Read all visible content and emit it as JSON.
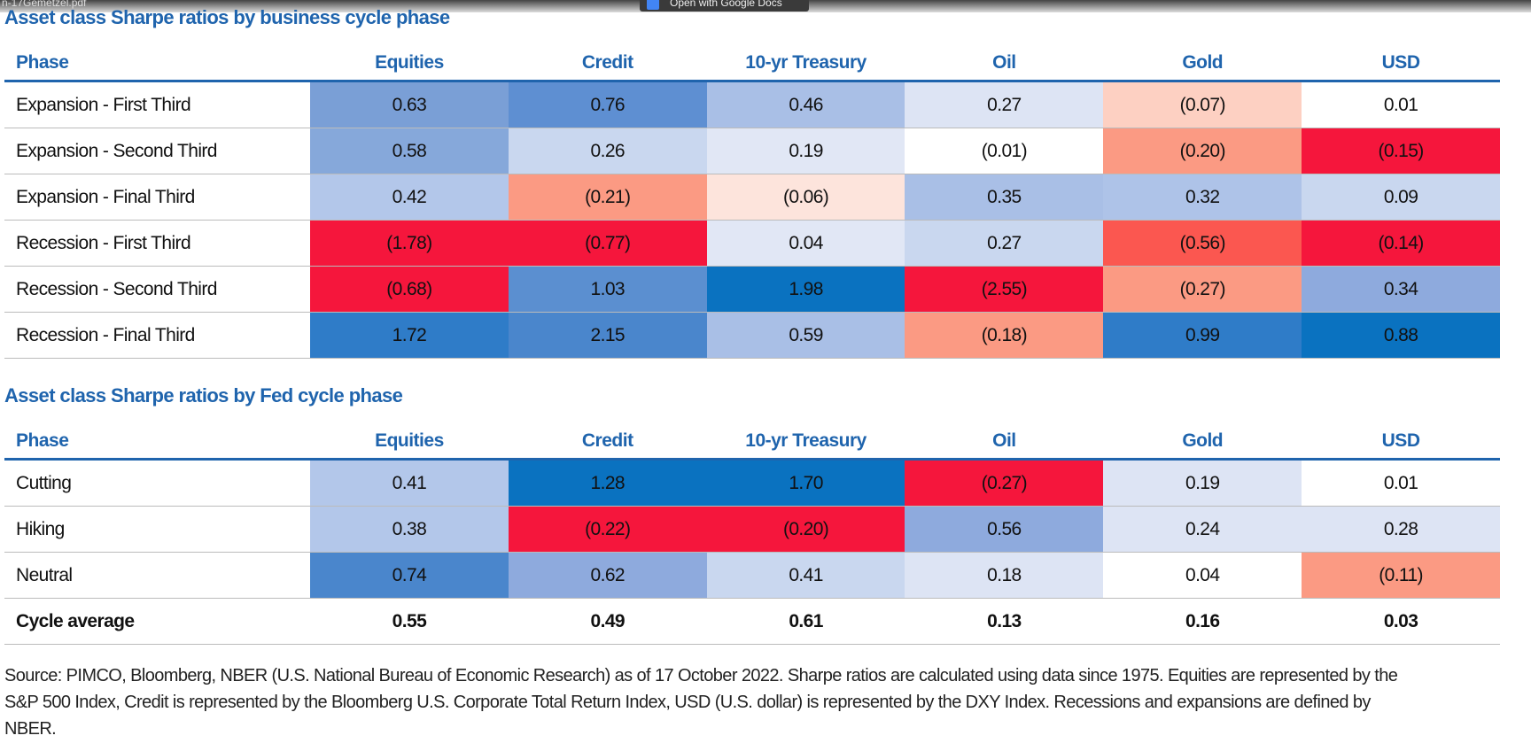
{
  "viewer": {
    "file_name": "n-17Gemetzel.pdf",
    "open_button": "Open with Google Docs"
  },
  "tables": [
    {
      "title": "Asset class Sharpe ratios by business cycle phase",
      "header": [
        "Phase",
        "Equities",
        "Credit",
        "10-yr Treasury",
        "Oil",
        "Gold",
        "USD"
      ],
      "rows": [
        [
          "Expansion - First Third",
          "0.63",
          "0.76",
          "0.46",
          "0.27",
          "(0.07)",
          "0.01"
        ],
        [
          "Expansion - Second Third",
          "0.58",
          "0.26",
          "0.19",
          "(0.01)",
          "(0.20)",
          "(0.15)"
        ],
        [
          "Expansion - Final Third",
          "0.42",
          "(0.21)",
          "(0.06)",
          "0.35",
          "0.32",
          "0.09"
        ],
        [
          "Recession - First Third",
          "(1.78)",
          "(0.77)",
          "0.04",
          "0.27",
          "(0.56)",
          "(0.14)"
        ],
        [
          "Recession - Second Third",
          "(0.68)",
          "1.03",
          "1.98",
          "(2.55)",
          "(0.27)",
          "0.34"
        ],
        [
          "Recession - Final Third",
          "1.72",
          "2.15",
          "0.59",
          "(0.18)",
          "0.99",
          "0.88"
        ]
      ],
      "colors": [
        [
          "#7a9fd6",
          "#5e8fd2",
          "#a9bfe6",
          "#dde4f4",
          "#fdd0c2",
          "#ffffff"
        ],
        [
          "#86a8da",
          "#c9d7ef",
          "#e1e7f5",
          "#ffffff",
          "#fb9a83",
          "#f5163c"
        ],
        [
          "#b3c7ea",
          "#fb9a83",
          "#fde4dc",
          "#a9bfe6",
          "#aec3e8",
          "#c9d7ef"
        ],
        [
          "#f5163c",
          "#f5163c",
          "#e1e7f5",
          "#c9d7ef",
          "#fb5750",
          "#f5163c"
        ],
        [
          "#f5163c",
          "#5b8fd0",
          "#0a72c0",
          "#f5163c",
          "#fb9a83",
          "#8eaadd"
        ],
        [
          "#2f7cc8",
          "#4a86cc",
          "#a9bfe6",
          "#fb9a83",
          "#2f7cc8",
          "#0a72c0"
        ]
      ]
    },
    {
      "title": "Asset class Sharpe ratios by Fed cycle phase",
      "header": [
        "Phase",
        "Equities",
        "Credit",
        "10-yr Treasury",
        "Oil",
        "Gold",
        "USD"
      ],
      "rows": [
        [
          "Cutting",
          "0.41",
          "1.28",
          "1.70",
          "(0.27)",
          "0.19",
          "0.01"
        ],
        [
          "Hiking",
          "0.38",
          "(0.22)",
          "(0.20)",
          "0.56",
          "0.24",
          "0.28"
        ],
        [
          "Neutral",
          "0.74",
          "0.62",
          "0.41",
          "0.18",
          "0.04",
          "(0.11)"
        ]
      ],
      "colors": [
        [
          "#b3c7ea",
          "#0a72c0",
          "#0a72c0",
          "#f5163c",
          "#dde4f4",
          "#ffffff"
        ],
        [
          "#b3c7ea",
          "#f5163c",
          "#f5163c",
          "#8eaadd",
          "#dde4f4",
          "#dde4f4"
        ],
        [
          "#4a86cc",
          "#8eaadd",
          "#c9d7ef",
          "#dde4f4",
          "#ffffff",
          "#fb9a83"
        ]
      ],
      "footer_row": [
        "Cycle average",
        "0.55",
        "0.49",
        "0.61",
        "0.13",
        "0.16",
        "0.03"
      ]
    }
  ],
  "source": "Source: PIMCO, Bloomberg, NBER (U.S. National Bureau of Economic Research) as of 17 October 2022. Sharpe ratios are calculated using data since 1975. Equities are represented by the S&P 500 Index, Credit is represented by the Bloomberg U.S. Corporate Total Return Index, USD (U.S. dollar) is represented by the DXY Index. Recessions and expansions are defined by NBER."
}
